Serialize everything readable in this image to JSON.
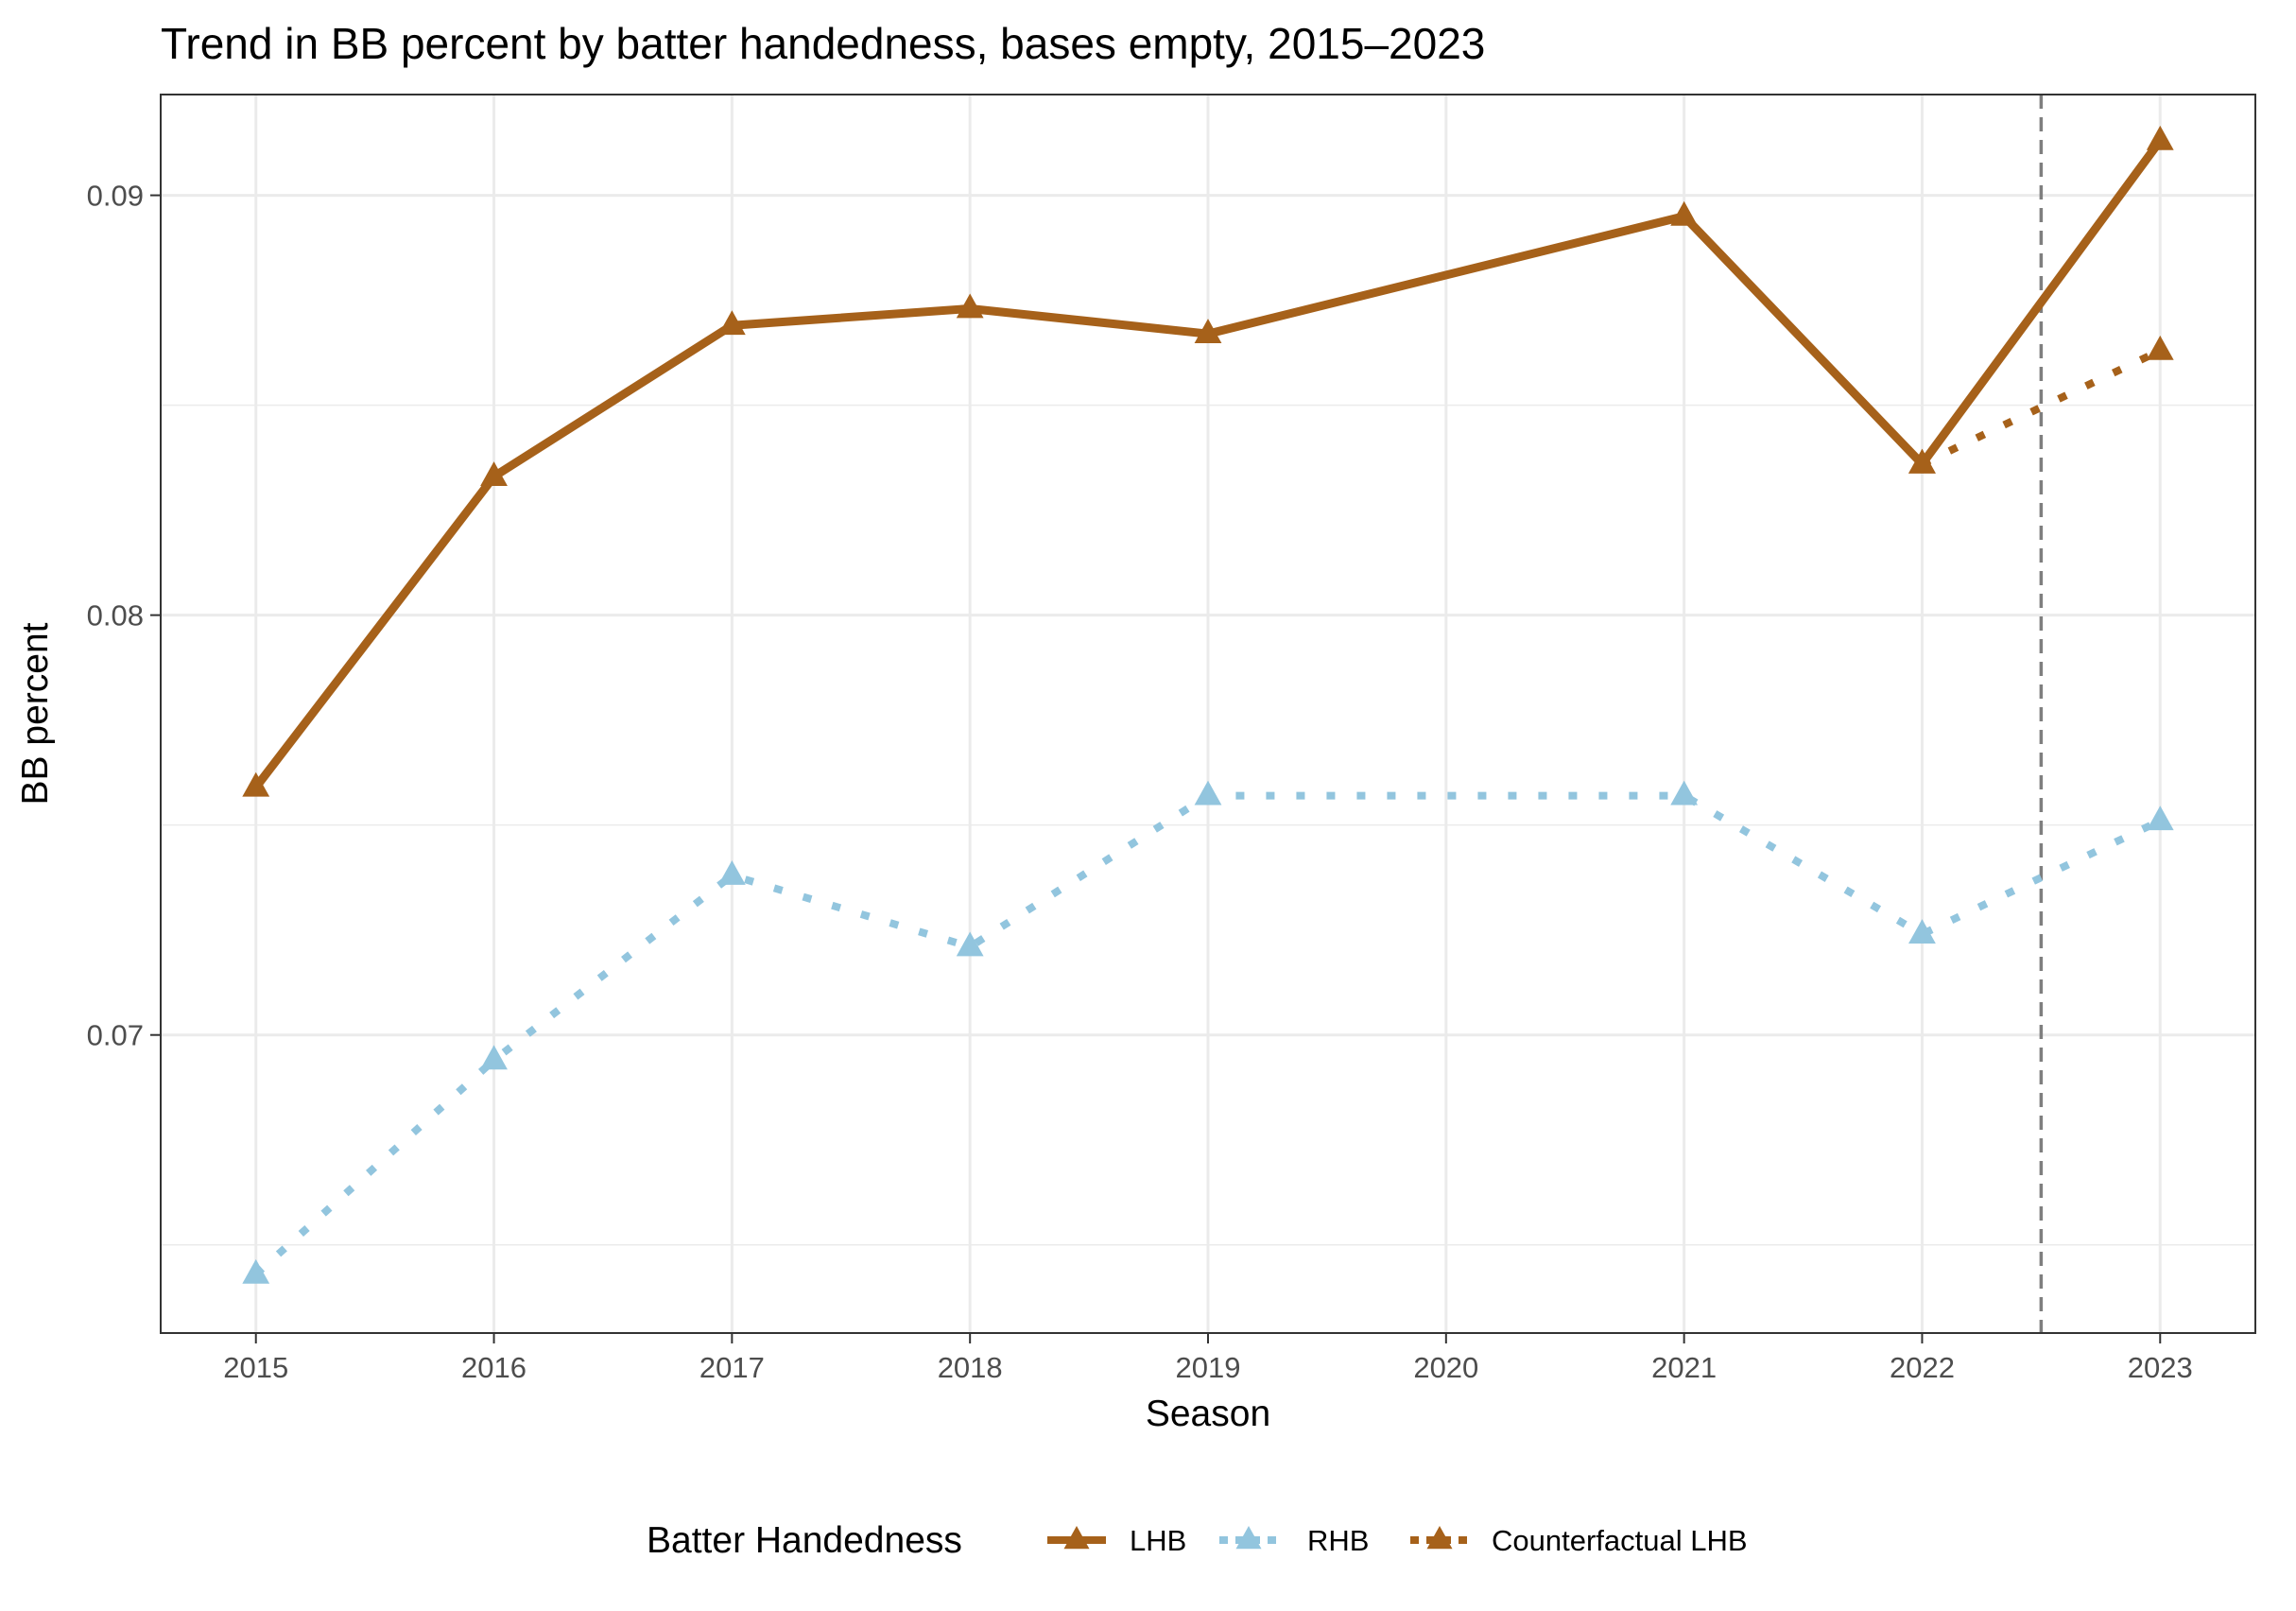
{
  "chart_data": {
    "type": "line",
    "title": "Trend in BB percent by batter handedness, bases empty, 2015–2023",
    "xlabel": "Season",
    "ylabel": "BB percent",
    "xlim": [
      2014.6,
      2023.4
    ],
    "ylim": [
      0.0629,
      0.0924
    ],
    "x_ticks": [
      2015,
      2016,
      2017,
      2018,
      2019,
      2020,
      2021,
      2022,
      2023
    ],
    "x_tick_labels": [
      "2015",
      "2016",
      "2017",
      "2018",
      "2019",
      "2020",
      "2021",
      "2022",
      "2023"
    ],
    "y_ticks": [
      0.07,
      0.08,
      0.09
    ],
    "y_tick_labels": [
      "0.07",
      "0.08",
      "0.09"
    ],
    "y_minor_ticks": [
      0.065,
      0.075,
      0.085
    ],
    "grid": true,
    "reference_line": {
      "x": 2022.5,
      "style": "dashed",
      "color": "#7f7f7f"
    },
    "legend": {
      "title": "Batter Handedness",
      "position": "bottom"
    },
    "series": [
      {
        "name": "LHB",
        "color": "#a6611a",
        "line_style": "solid",
        "marker": "triangle",
        "x": [
          2015,
          2016,
          2017,
          2018,
          2019,
          2021,
          2022,
          2023
        ],
        "values": [
          0.0759,
          0.0833,
          0.0869,
          0.0873,
          0.0867,
          0.0895,
          0.0836,
          0.0913
        ]
      },
      {
        "name": "RHB",
        "color": "#92c5de",
        "line_style": "dotted",
        "marker": "triangle",
        "x": [
          2015,
          2016,
          2017,
          2018,
          2019,
          2021,
          2022,
          2023
        ],
        "values": [
          0.0643,
          0.0694,
          0.0738,
          0.0721,
          0.0757,
          0.0757,
          0.0724,
          0.0751
        ]
      },
      {
        "name": "Counterfactual LHB",
        "color": "#a6611a",
        "line_style": "dotted",
        "marker": "triangle",
        "x": [
          2022,
          2023
        ],
        "values": [
          0.0836,
          0.0863
        ]
      }
    ]
  }
}
